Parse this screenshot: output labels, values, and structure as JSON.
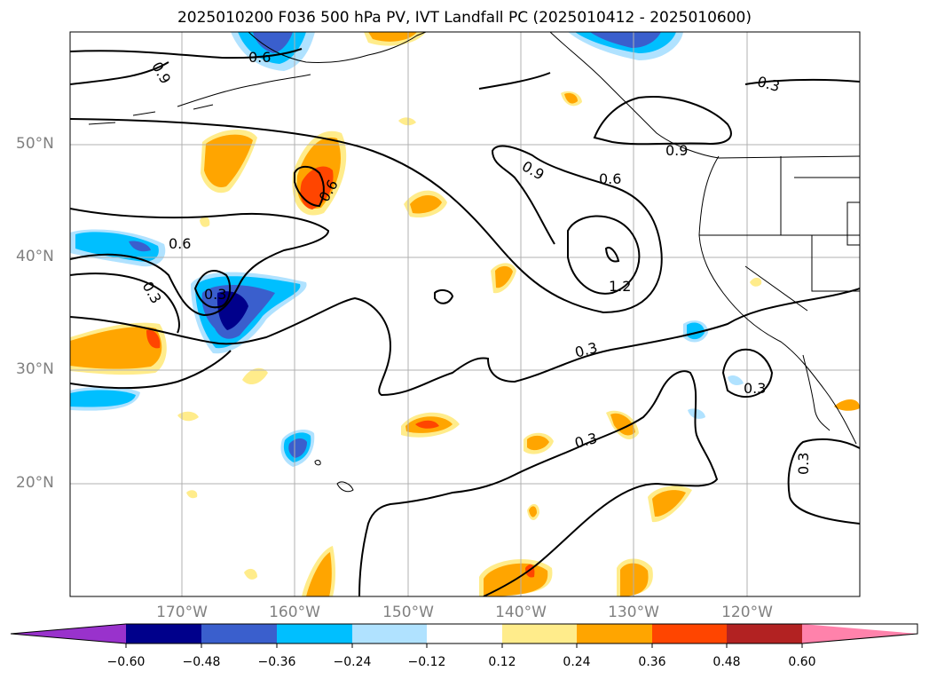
{
  "title": "2025010200 F036 500 hPa PV, IVT Landfall PC (2025010412 - 2025010600)",
  "map": {
    "lat_ticks": [
      "50°N",
      "40°N",
      "30°N",
      "20°N"
    ],
    "lon_ticks": [
      "170°W",
      "160°W",
      "150°W",
      "140°W",
      "130°W",
      "120°W"
    ],
    "contour_labels": [
      {
        "text": "0.6"
      },
      {
        "text": "0.9"
      },
      {
        "text": "0.6"
      },
      {
        "text": "0.3"
      },
      {
        "text": "0.3"
      },
      {
        "text": "0.9"
      },
      {
        "text": "0.6"
      },
      {
        "text": "0.6"
      },
      {
        "text": "0.3"
      },
      {
        "text": "0.9"
      },
      {
        "text": "1.2"
      },
      {
        "text": "0.3"
      },
      {
        "text": "0.3"
      },
      {
        "text": "0.3"
      },
      {
        "text": "0.3"
      }
    ]
  },
  "colorbar": {
    "ticks": [
      "−0.60",
      "−0.48",
      "−0.36",
      "−0.24",
      "−0.12",
      "0.12",
      "0.24",
      "0.36",
      "0.48",
      "0.60"
    ],
    "colors": [
      "#9932cc",
      "#00008b",
      "#3a5fcd",
      "#00bfff",
      "#b0e2ff",
      "#ffffff",
      "#ffec8b",
      "#ffa500",
      "#ff4500",
      "#b22222",
      "#ff82ab"
    ]
  }
}
